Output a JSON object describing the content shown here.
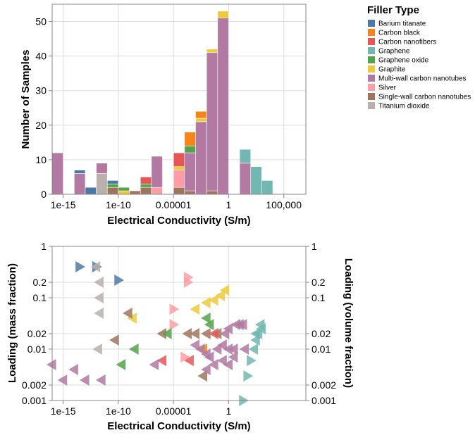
{
  "legend": {
    "title": "Filler Type",
    "items": [
      {
        "label": "Barium titanate",
        "color": "#4c78a8"
      },
      {
        "label": "Carbon black",
        "color": "#f58518"
      },
      {
        "label": "Carbon nanofibers",
        "color": "#e45756"
      },
      {
        "label": "Graphene",
        "color": "#72b7b2"
      },
      {
        "label": "Graphene oxide",
        "color": "#54a24b"
      },
      {
        "label": "Graphite",
        "color": "#eeca3b"
      },
      {
        "label": "Multi-wall carbon nanotubes",
        "color": "#b279a2"
      },
      {
        "label": "Silver",
        "color": "#ff9da6"
      },
      {
        "label": "Single-wall carbon nanotubes",
        "color": "#9d755d"
      },
      {
        "label": "Titanium dioxide",
        "color": "#bab0ac"
      }
    ]
  },
  "chart_data": [
    {
      "type": "bar",
      "subtype": "stacked-histogram",
      "xlabel": "Electrical Conductivity (S/m)",
      "ylabel": "Number of Samples",
      "x_scale": "log",
      "xlim": [
        1e-16,
        10000000.0
      ],
      "ylim": [
        0,
        55
      ],
      "x_ticks": [
        "1e-15",
        "1e-10",
        "0.00001",
        "1",
        "100,000"
      ],
      "y_ticks": [
        "0",
        "10",
        "20",
        "30",
        "40",
        "50"
      ],
      "grid": true,
      "bin_width_decades": 1,
      "bins": [
        {
          "log10_start": -16,
          "segments": [
            {
              "filler": "Multi-wall carbon nanotubes",
              "count": 12
            }
          ]
        },
        {
          "log10_start": -14,
          "segments": [
            {
              "filler": "Multi-wall carbon nanotubes",
              "count": 6
            },
            {
              "filler": "Barium titanate",
              "count": 1
            }
          ]
        },
        {
          "log10_start": -13,
          "segments": [
            {
              "filler": "Barium titanate",
              "count": 2
            }
          ]
        },
        {
          "log10_start": -12,
          "segments": [
            {
              "filler": "Titanium dioxide",
              "count": 6
            },
            {
              "filler": "Multi-wall carbon nanotubes",
              "count": 3
            }
          ]
        },
        {
          "log10_start": -11,
          "segments": [
            {
              "filler": "Single-wall carbon nanotubes",
              "count": 2
            },
            {
              "filler": "Graphene oxide",
              "count": 1
            },
            {
              "filler": "Barium titanate",
              "count": 1
            }
          ]
        },
        {
          "log10_start": -10,
          "segments": [
            {
              "filler": "Graphite",
              "count": 1
            },
            {
              "filler": "Graphene oxide",
              "count": 1
            }
          ]
        },
        {
          "log10_start": -9,
          "segments": [
            {
              "filler": "Single-wall carbon nanotubes",
              "count": 1
            }
          ]
        },
        {
          "log10_start": -8,
          "segments": [
            {
              "filler": "Single-wall carbon nanotubes",
              "count": 2
            },
            {
              "filler": "Graphene oxide",
              "count": 1
            },
            {
              "filler": "Carbon nanofibers",
              "count": 2
            }
          ]
        },
        {
          "log10_start": -7,
          "segments": [
            {
              "filler": "Silver",
              "count": 2
            },
            {
              "filler": "Multi-wall carbon nanotubes",
              "count": 9
            }
          ]
        },
        {
          "log10_start": -5,
          "segments": [
            {
              "filler": "Single-wall carbon nanotubes",
              "count": 2
            },
            {
              "filler": "Silver",
              "count": 5
            },
            {
              "filler": "Graphite",
              "count": 1
            },
            {
              "filler": "Carbon nanofibers",
              "count": 4
            }
          ]
        },
        {
          "log10_start": -4,
          "segments": [
            {
              "filler": "Single-wall carbon nanotubes",
              "count": 1
            },
            {
              "filler": "Multi-wall carbon nanotubes",
              "count": 11
            },
            {
              "filler": "Graphene oxide",
              "count": 2
            },
            {
              "filler": "Carbon black",
              "count": 4
            }
          ]
        },
        {
          "log10_start": -3,
          "segments": [
            {
              "filler": "Multi-wall carbon nanotubes",
              "count": 21
            },
            {
              "filler": "Graphite",
              "count": 1
            },
            {
              "filler": "Carbon black",
              "count": 2
            }
          ]
        },
        {
          "log10_start": -2,
          "segments": [
            {
              "filler": "Single-wall carbon nanotubes",
              "count": 1
            },
            {
              "filler": "Multi-wall carbon nanotubes",
              "count": 40
            },
            {
              "filler": "Graphite",
              "count": 1
            }
          ]
        },
        {
          "log10_start": -1,
          "segments": [
            {
              "filler": "Multi-wall carbon nanotubes",
              "count": 51
            },
            {
              "filler": "Graphite",
              "count": 2
            }
          ]
        },
        {
          "log10_start": 1,
          "segments": [
            {
              "filler": "Multi-wall carbon nanotubes",
              "count": 9
            },
            {
              "filler": "Graphene",
              "count": 4
            }
          ]
        },
        {
          "log10_start": 2,
          "segments": [
            {
              "filler": "Graphene",
              "count": 8
            }
          ]
        },
        {
          "log10_start": 3,
          "segments": [
            {
              "filler": "Graphene",
              "count": 4
            }
          ]
        }
      ]
    },
    {
      "type": "scatter",
      "xlabel": "Electrical Conductivity (S/m)",
      "ylabel_left": "Loading (mass fraction)",
      "ylabel_right": "Loading (volume fraction)",
      "x_scale": "log",
      "y_scale": "log",
      "xlim": [
        1e-16,
        10000000.0
      ],
      "ylim": [
        0.001,
        1
      ],
      "x_ticks": [
        "1e-15",
        "1e-10",
        "0.00001",
        "1"
      ],
      "y_ticks": [
        "0.001",
        "0.002",
        "0.01",
        "0.02",
        "0.1",
        "0.2",
        "1"
      ],
      "grid": true,
      "marker_note": "right-pointing triangle = mass fraction; left-pointing triangle = volume fraction",
      "points": [
        {
          "filler": "Barium titanate",
          "x": 3e-14,
          "y": 0.4,
          "axis": "mass"
        },
        {
          "filler": "Barium titanate",
          "x": 1e-12,
          "y": 0.4,
          "axis": "mass"
        },
        {
          "filler": "Barium titanate",
          "x": 1e-10,
          "y": 0.22,
          "axis": "mass"
        },
        {
          "filler": "Titanium dioxide",
          "x": 1e-12,
          "y": 0.4,
          "axis": "volume"
        },
        {
          "filler": "Titanium dioxide",
          "x": 2e-12,
          "y": 0.2,
          "axis": "volume"
        },
        {
          "filler": "Titanium dioxide",
          "x": 2e-12,
          "y": 0.1,
          "axis": "volume"
        },
        {
          "filler": "Titanium dioxide",
          "x": 2e-12,
          "y": 0.05,
          "axis": "volume"
        },
        {
          "filler": "Titanium dioxide",
          "x": 1.5e-12,
          "y": 0.01,
          "axis": "volume"
        },
        {
          "filler": "Graphite",
          "x": 2e-09,
          "y": 0.04,
          "axis": "volume"
        },
        {
          "filler": "Graphite",
          "x": 0.001,
          "y": 0.06,
          "axis": "volume"
        },
        {
          "filler": "Graphite",
          "x": 0.01,
          "y": 0.08,
          "axis": "volume"
        },
        {
          "filler": "Graphite",
          "x": 0.05,
          "y": 0.09,
          "axis": "volume"
        },
        {
          "filler": "Graphite",
          "x": 0.2,
          "y": 0.11,
          "axis": "volume"
        },
        {
          "filler": "Graphite",
          "x": 0.5,
          "y": 0.14,
          "axis": "volume"
        },
        {
          "filler": "Silver",
          "x": 0.0002,
          "y": 0.25,
          "axis": "mass"
        },
        {
          "filler": "Silver",
          "x": 0.0002,
          "y": 0.2,
          "axis": "mass"
        },
        {
          "filler": "Silver",
          "x": 1e-05,
          "y": 0.06,
          "axis": "mass"
        },
        {
          "filler": "Silver",
          "x": 1e-05,
          "y": 0.03,
          "axis": "mass"
        },
        {
          "filler": "Silver",
          "x": 0.0001,
          "y": 0.007,
          "axis": "mass"
        },
        {
          "filler": "Single-wall carbon nanotubes",
          "x": 8e-10,
          "y": 0.05,
          "axis": "volume"
        },
        {
          "filler": "Single-wall carbon nanotubes",
          "x": 5e-11,
          "y": 0.015,
          "axis": "volume"
        },
        {
          "filler": "Single-wall carbon nanotubes",
          "x": 1e-06,
          "y": 0.02,
          "axis": "volume"
        },
        {
          "filler": "Single-wall carbon nanotubes",
          "x": 0.0002,
          "y": 0.02,
          "axis": "volume"
        },
        {
          "filler": "Single-wall carbon nanotubes",
          "x": 0.001,
          "y": 0.02,
          "axis": "volume"
        },
        {
          "filler": "Single-wall carbon nanotubes",
          "x": 0.01,
          "y": 0.02,
          "axis": "volume"
        },
        {
          "filler": "Single-wall carbon nanotubes",
          "x": 0.1,
          "y": 0.02,
          "axis": "volume"
        },
        {
          "filler": "Single-wall carbon nanotubes",
          "x": 0.005,
          "y": 0.003,
          "axis": "volume"
        },
        {
          "filler": "Graphene oxide",
          "x": 3e-06,
          "y": 0.02,
          "axis": "volume"
        },
        {
          "filler": "Graphene oxide",
          "x": 3e-09,
          "y": 0.01,
          "axis": "volume"
        },
        {
          "filler": "Graphene oxide",
          "x": 2e-10,
          "y": 0.005,
          "axis": "volume"
        },
        {
          "filler": "Graphene oxide",
          "x": 0.01,
          "y": 0.04,
          "axis": "volume"
        },
        {
          "filler": "Graphene oxide",
          "x": 0.02,
          "y": 0.03,
          "axis": "volume"
        },
        {
          "filler": "Carbon nanofibers",
          "x": 1e-06,
          "y": 0.006,
          "axis": "volume"
        },
        {
          "filler": "Carbon nanofibers",
          "x": 0.0003,
          "y": 0.006,
          "axis": "volume"
        },
        {
          "filler": "Carbon nanofibers",
          "x": 0.05,
          "y": 0.02,
          "axis": "volume"
        },
        {
          "filler": "Carbon black",
          "x": 0.005,
          "y": 0.01,
          "axis": "volume"
        },
        {
          "filler": "Multi-wall carbon nanotubes",
          "x": 1e-16,
          "y": 0.005,
          "axis": "volume"
        },
        {
          "filler": "Multi-wall carbon nanotubes",
          "x": 1e-14,
          "y": 0.004,
          "axis": "volume"
        },
        {
          "filler": "Multi-wall carbon nanotubes",
          "x": 1e-15,
          "y": 0.0025,
          "axis": "volume"
        },
        {
          "filler": "Multi-wall carbon nanotubes",
          "x": 1e-13,
          "y": 0.0025,
          "axis": "volume"
        },
        {
          "filler": "Multi-wall carbon nanotubes",
          "x": 3e-12,
          "y": 0.0025,
          "axis": "volume"
        },
        {
          "filler": "Multi-wall carbon nanotubes",
          "x": 2e-07,
          "y": 0.005,
          "axis": "volume"
        },
        {
          "filler": "Multi-wall carbon nanotubes",
          "x": 0.001,
          "y": 0.012,
          "axis": "volume"
        },
        {
          "filler": "Multi-wall carbon nanotubes",
          "x": 0.003,
          "y": 0.01,
          "axis": "volume"
        },
        {
          "filler": "Multi-wall carbon nanotubes",
          "x": 0.01,
          "y": 0.008,
          "axis": "volume"
        },
        {
          "filler": "Multi-wall carbon nanotubes",
          "x": 0.02,
          "y": 0.007,
          "axis": "volume"
        },
        {
          "filler": "Multi-wall carbon nanotubes",
          "x": 0.05,
          "y": 0.005,
          "axis": "volume"
        },
        {
          "filler": "Multi-wall carbon nanotubes",
          "x": 0.1,
          "y": 0.01,
          "axis": "volume"
        },
        {
          "filler": "Multi-wall carbon nanotubes",
          "x": 0.3,
          "y": 0.012,
          "axis": "volume"
        },
        {
          "filler": "Multi-wall carbon nanotubes",
          "x": 1,
          "y": 0.01,
          "axis": "volume"
        },
        {
          "filler": "Multi-wall carbon nanotubes",
          "x": 3,
          "y": 0.007,
          "axis": "volume"
        },
        {
          "filler": "Multi-wall carbon nanotubes",
          "x": 1,
          "y": 0.005,
          "axis": "volume"
        },
        {
          "filler": "Multi-wall carbon nanotubes",
          "x": 0.3,
          "y": 0.006,
          "axis": "volume"
        },
        {
          "filler": "Multi-wall carbon nanotubes",
          "x": 0.5,
          "y": 0.02,
          "axis": "volume"
        },
        {
          "filler": "Multi-wall carbon nanotubes",
          "x": 1,
          "y": 0.025,
          "axis": "volume"
        },
        {
          "filler": "Multi-wall carbon nanotubes",
          "x": 5,
          "y": 0.03,
          "axis": "volume"
        },
        {
          "filler": "Multi-wall carbon nanotubes",
          "x": 10,
          "y": 0.03,
          "axis": "volume"
        },
        {
          "filler": "Multi-wall carbon nanotubes",
          "x": 20,
          "y": 0.03,
          "axis": "volume"
        },
        {
          "filler": "Multi-wall carbon nanotubes",
          "x": 30,
          "y": 0.01,
          "axis": "volume"
        },
        {
          "filler": "Multi-wall carbon nanotubes",
          "x": 0.01,
          "y": 0.004,
          "axis": "volume"
        },
        {
          "filler": "Multi-wall carbon nanotubes",
          "x": 3,
          "y": 0.01,
          "axis": "volume"
        },
        {
          "filler": "Graphene",
          "x": 100,
          "y": 0.006,
          "axis": "mass"
        },
        {
          "filler": "Graphene",
          "x": 50,
          "y": 0.003,
          "axis": "mass"
        },
        {
          "filler": "Graphene",
          "x": 20,
          "y": 0.001,
          "axis": "mass"
        },
        {
          "filler": "Graphene",
          "x": 200,
          "y": 0.01,
          "axis": "volume"
        },
        {
          "filler": "Graphene",
          "x": 300,
          "y": 0.015,
          "axis": "volume"
        },
        {
          "filler": "Graphene",
          "x": 500,
          "y": 0.02,
          "axis": "volume"
        },
        {
          "filler": "Graphene",
          "x": 1000,
          "y": 0.025,
          "axis": "volume"
        },
        {
          "filler": "Graphene",
          "x": 800,
          "y": 0.03,
          "axis": "volume"
        },
        {
          "filler": "Graphene",
          "x": 300,
          "y": 0.02,
          "axis": "volume"
        }
      ]
    }
  ]
}
